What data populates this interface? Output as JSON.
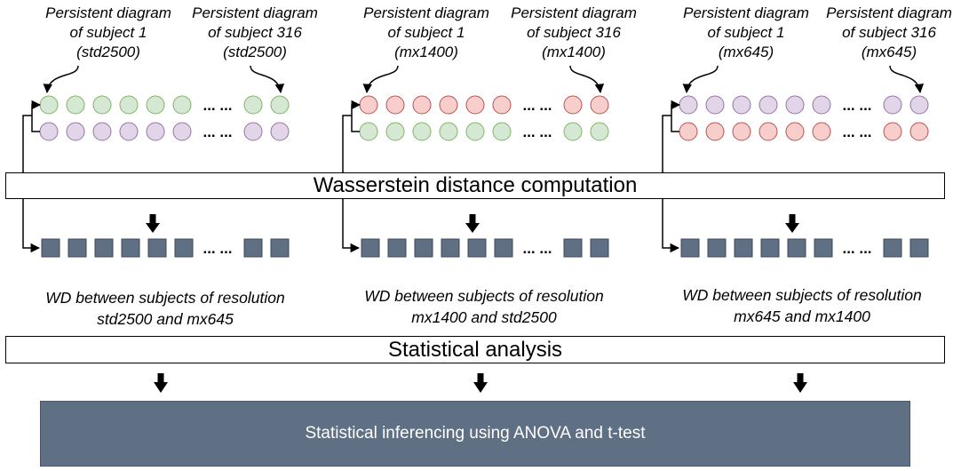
{
  "groups": [
    {
      "diagram_left": [
        "Persistent diagram",
        "of subject 1",
        "(std2500)"
      ],
      "diagram_right": [
        "Persistent diagram",
        "of subject 316",
        "(std2500)"
      ],
      "wd_caption": [
        "WD between subjects of resolution",
        "std2500 and mx645"
      ],
      "top_row_color": "green",
      "bottom_row_color": "purple"
    },
    {
      "diagram_left": [
        "Persistent diagram",
        "of subject 1",
        "(mx1400)"
      ],
      "diagram_right": [
        "Persistent diagram",
        "of subject 316",
        "(mx1400)"
      ],
      "wd_caption": [
        "WD between subjects of resolution",
        "mx1400 and std2500"
      ],
      "top_row_color": "red",
      "bottom_row_color": "green"
    },
    {
      "diagram_left": [
        "Persistent diagram",
        "of subject 1",
        "(mx645)"
      ],
      "diagram_right": [
        "Persistent diagram",
        "of subject 316",
        "(mx645)"
      ],
      "wd_caption": [
        "WD between subjects of resolution",
        "mx645 and mx1400"
      ],
      "top_row_color": "purple",
      "bottom_row_color": "red"
    }
  ],
  "ellipsis": "... ...",
  "wasserstein_bar": "Wasserstein distance computation",
  "statistical_bar": "Statistical analysis",
  "final_box": "Statistical inferencing using ANOVA and t-test",
  "colors": {
    "green": {
      "fill": "#d5e8d4",
      "stroke": "#82b366"
    },
    "purple": {
      "fill": "#e1d5e7",
      "stroke": "#9673a6"
    },
    "red": {
      "fill": "#f8cecc",
      "stroke": "#b85450"
    },
    "square_fill": "#5f6f84",
    "square_stroke": "#3f4a58",
    "final_fill": "#5f6f84"
  }
}
